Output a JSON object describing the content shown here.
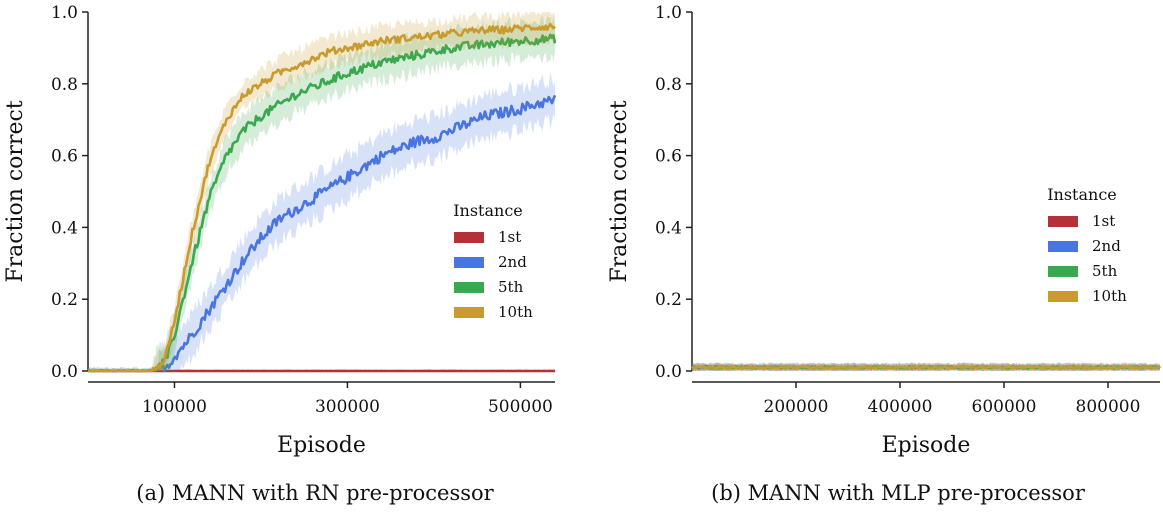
{
  "chart_data": [
    {
      "type": "line",
      "caption": "(a) MANN with RN pre-processor",
      "xlabel": "Episode",
      "ylabel": "Fraction correct",
      "xlim": [
        0,
        540000
      ],
      "ylim": [
        0,
        1.0
      ],
      "xticks": [
        100000,
        300000,
        500000
      ],
      "xtick_labels": [
        "100000",
        "300000",
        "500000"
      ],
      "yticks": [
        0.0,
        0.2,
        0.4,
        0.6,
        0.8,
        1.0
      ],
      "ytick_labels": [
        "0.0",
        "0.2",
        "0.4",
        "0.6",
        "0.8",
        "1.0"
      ],
      "legend": {
        "title": "Instance",
        "placement": "center-right"
      },
      "x": [
        0,
        40000,
        60000,
        70000,
        80000,
        90000,
        100000,
        120000,
        140000,
        160000,
        180000,
        200000,
        220000,
        240000,
        260000,
        280000,
        300000,
        320000,
        340000,
        360000,
        380000,
        400000,
        420000,
        440000,
        460000,
        480000,
        500000,
        520000,
        540000
      ],
      "series": [
        {
          "name": "1st",
          "color": "#b5313a",
          "values": [
            0,
            0,
            0,
            0,
            0,
            0,
            0,
            0,
            0,
            0,
            0,
            0,
            0,
            0,
            0,
            0,
            0,
            0,
            0,
            0,
            0,
            0,
            0,
            0,
            0,
            0,
            0,
            0,
            0
          ],
          "band": 0.004
        },
        {
          "name": "2nd",
          "color": "#4a75e0",
          "values": [
            0,
            0,
            0,
            0,
            0.002,
            0.01,
            0.04,
            0.1,
            0.17,
            0.24,
            0.31,
            0.37,
            0.42,
            0.45,
            0.48,
            0.51,
            0.54,
            0.57,
            0.6,
            0.62,
            0.64,
            0.65,
            0.67,
            0.69,
            0.71,
            0.72,
            0.73,
            0.745,
            0.755
          ],
          "band": 0.06
        },
        {
          "name": "5th",
          "color": "#3aa84f",
          "values": [
            0,
            0,
            0,
            0,
            0.005,
            0.03,
            0.1,
            0.3,
            0.48,
            0.6,
            0.67,
            0.71,
            0.74,
            0.77,
            0.79,
            0.81,
            0.83,
            0.845,
            0.86,
            0.87,
            0.88,
            0.89,
            0.9,
            0.905,
            0.91,
            0.915,
            0.92,
            0.923,
            0.925
          ],
          "band": 0.05
        },
        {
          "name": "10th",
          "color": "#c99a2e",
          "values": [
            0,
            0,
            0,
            0,
            0.006,
            0.04,
            0.14,
            0.38,
            0.58,
            0.7,
            0.77,
            0.8,
            0.83,
            0.85,
            0.87,
            0.89,
            0.9,
            0.91,
            0.92,
            0.925,
            0.93,
            0.935,
            0.94,
            0.945,
            0.95,
            0.95,
            0.955,
            0.958,
            0.96
          ],
          "band": 0.04
        }
      ]
    },
    {
      "type": "line",
      "caption": "(b) MANN with MLP pre-processor",
      "xlabel": "Episode",
      "ylabel": "Fraction correct",
      "xlim": [
        0,
        900000
      ],
      "ylim": [
        0,
        1.0
      ],
      "xticks": [
        200000,
        400000,
        600000,
        800000
      ],
      "xtick_labels": [
        "200000",
        "400000",
        "600000",
        "800000"
      ],
      "yticks": [
        0.0,
        0.2,
        0.4,
        0.6,
        0.8,
        1.0
      ],
      "ytick_labels": [
        "0.0",
        "0.2",
        "0.4",
        "0.6",
        "0.8",
        "1.0"
      ],
      "legend": {
        "title": "Instance",
        "placement": "center-right"
      },
      "x": [
        0,
        100000,
        200000,
        300000,
        400000,
        500000,
        600000,
        700000,
        800000,
        900000
      ],
      "series": [
        {
          "name": "1st",
          "color": "#b5313a",
          "values": [
            0.01,
            0.01,
            0.01,
            0.01,
            0.01,
            0.01,
            0.01,
            0.01,
            0.01,
            0.01
          ],
          "band": 0.01
        },
        {
          "name": "2nd",
          "color": "#4a75e0",
          "values": [
            0.01,
            0.01,
            0.01,
            0.01,
            0.01,
            0.01,
            0.01,
            0.01,
            0.01,
            0.01
          ],
          "band": 0.01
        },
        {
          "name": "5th",
          "color": "#3aa84f",
          "values": [
            0.01,
            0.01,
            0.01,
            0.01,
            0.01,
            0.01,
            0.01,
            0.01,
            0.01,
            0.01
          ],
          "band": 0.01
        },
        {
          "name": "10th",
          "color": "#c99a2e",
          "values": [
            0.01,
            0.01,
            0.01,
            0.01,
            0.01,
            0.01,
            0.01,
            0.01,
            0.01,
            0.01
          ],
          "band": 0.01
        }
      ]
    }
  ]
}
